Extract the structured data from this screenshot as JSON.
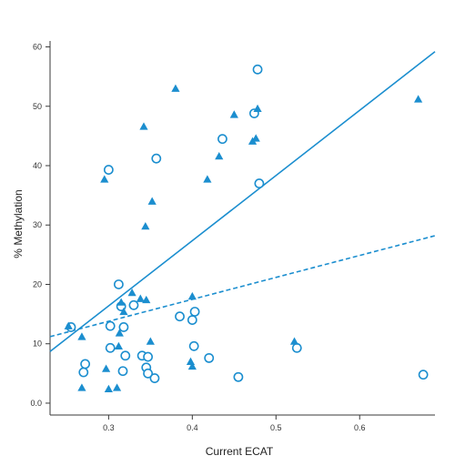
{
  "chart_data": {
    "type": "scatter",
    "xlabel": "Current ECAT",
    "ylabel": "% Methylation",
    "xlim": [
      0.23,
      0.69
    ],
    "ylim": [
      -2,
      61
    ],
    "x_ticks": [
      {
        "value": 0.3,
        "label": "0.3"
      },
      {
        "value": 0.4,
        "label": "0.4"
      },
      {
        "value": 0.5,
        "label": "0.5"
      },
      {
        "value": 0.6,
        "label": "0.6"
      }
    ],
    "y_ticks": [
      {
        "value": 0,
        "label": "0.0"
      },
      {
        "value": 10,
        "label": "10"
      },
      {
        "value": 20,
        "label": "20"
      },
      {
        "value": 30,
        "label": "30"
      },
      {
        "value": 40,
        "label": "40"
      },
      {
        "value": 50,
        "label": "50"
      },
      {
        "value": 60,
        "label": "60"
      }
    ],
    "grid": false,
    "color": "#1b8ecf",
    "series": [
      {
        "marker": "circle",
        "points": [
          [
            0.255,
            12.8
          ],
          [
            0.27,
            5.2
          ],
          [
            0.272,
            6.6
          ],
          [
            0.3,
            39.3
          ],
          [
            0.302,
            13.0
          ],
          [
            0.302,
            9.3
          ],
          [
            0.312,
            20.0
          ],
          [
            0.315,
            16.3
          ],
          [
            0.317,
            5.4
          ],
          [
            0.318,
            12.8
          ],
          [
            0.32,
            8.0
          ],
          [
            0.33,
            16.5
          ],
          [
            0.34,
            8.0
          ],
          [
            0.345,
            6.0
          ],
          [
            0.347,
            5.0
          ],
          [
            0.347,
            7.8
          ],
          [
            0.355,
            4.2
          ],
          [
            0.357,
            41.2
          ],
          [
            0.385,
            14.6
          ],
          [
            0.4,
            14.0
          ],
          [
            0.402,
            9.6
          ],
          [
            0.403,
            15.4
          ],
          [
            0.42,
            7.6
          ],
          [
            0.436,
            44.5
          ],
          [
            0.455,
            4.4
          ],
          [
            0.474,
            48.8
          ],
          [
            0.478,
            56.2
          ],
          [
            0.48,
            37.0
          ],
          [
            0.525,
            9.3
          ],
          [
            0.676,
            4.8
          ]
        ]
      },
      {
        "marker": "triangle",
        "points": [
          [
            0.252,
            13.0
          ],
          [
            0.268,
            11.2
          ],
          [
            0.268,
            2.6
          ],
          [
            0.295,
            37.7
          ],
          [
            0.297,
            5.8
          ],
          [
            0.3,
            2.4
          ],
          [
            0.31,
            2.6
          ],
          [
            0.312,
            9.6
          ],
          [
            0.313,
            11.8
          ],
          [
            0.315,
            17.0
          ],
          [
            0.318,
            15.4
          ],
          [
            0.328,
            18.6
          ],
          [
            0.338,
            17.6
          ],
          [
            0.342,
            46.6
          ],
          [
            0.344,
            29.8
          ],
          [
            0.345,
            17.4
          ],
          [
            0.35,
            10.4
          ],
          [
            0.352,
            34.0
          ],
          [
            0.38,
            53.0
          ],
          [
            0.398,
            7.0
          ],
          [
            0.4,
            6.2
          ],
          [
            0.4,
            18.0
          ],
          [
            0.418,
            37.7
          ],
          [
            0.432,
            41.6
          ],
          [
            0.45,
            48.6
          ],
          [
            0.472,
            44.1
          ],
          [
            0.476,
            44.6
          ],
          [
            0.478,
            49.6
          ],
          [
            0.522,
            10.4
          ],
          [
            0.67,
            51.2
          ]
        ]
      }
    ],
    "lines": [
      {
        "style": "solid",
        "x": [
          0.23,
          0.69
        ],
        "y": [
          8.7,
          59.2
        ]
      },
      {
        "style": "dashed",
        "x": [
          0.23,
          0.69
        ],
        "y": [
          11.2,
          28.2
        ]
      }
    ]
  }
}
